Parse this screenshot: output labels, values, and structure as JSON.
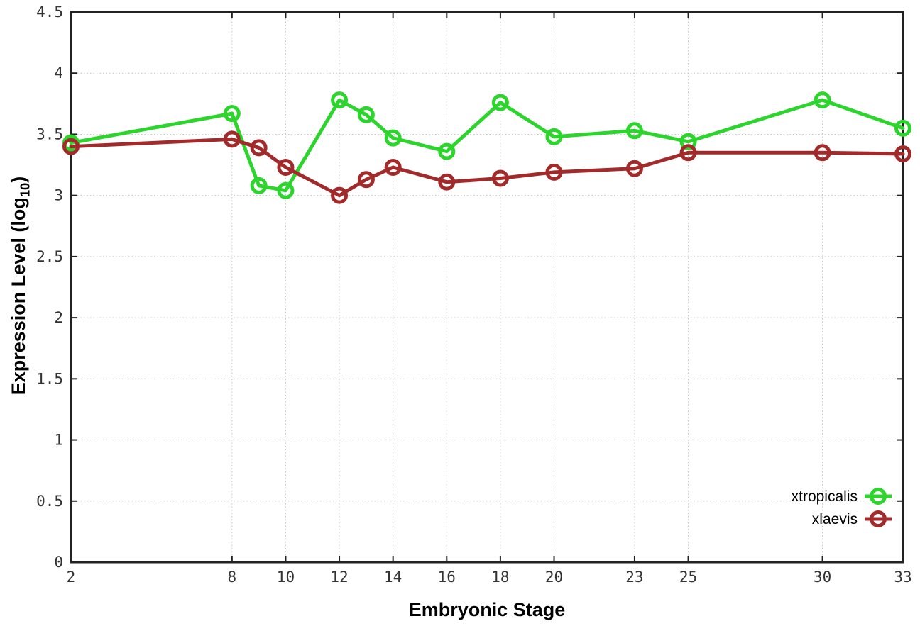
{
  "labels": {
    "xlabel": "Embryonic Stage",
    "ylabel_pre": "Expression Level (log",
    "ylabel_sub": "10",
    "ylabel_post": ")"
  },
  "chart_data": {
    "type": "line",
    "title": "",
    "xlabel": "Embryonic Stage",
    "ylabel": "Expression Level (log10)",
    "x": [
      2,
      8,
      9,
      10,
      12,
      13,
      14,
      16,
      18,
      20,
      23,
      25,
      30,
      33
    ],
    "series": [
      {
        "name": "xtropicalis",
        "color": "#2cd52c",
        "values": [
          3.43,
          3.67,
          3.08,
          3.04,
          3.78,
          3.66,
          3.47,
          3.36,
          3.76,
          3.48,
          3.53,
          3.44,
          3.78,
          3.55
        ]
      },
      {
        "name": "xlaevis",
        "color": "#a22a2a",
        "values": [
          3.4,
          3.46,
          3.39,
          3.23,
          3.0,
          3.13,
          3.23,
          3.11,
          3.14,
          3.19,
          3.22,
          3.35,
          3.35,
          3.34
        ]
      }
    ],
    "xticks": [
      2,
      8,
      10,
      12,
      14,
      16,
      18,
      20,
      23,
      25,
      30,
      33
    ],
    "yticks": [
      0,
      0.5,
      1,
      1.5,
      2,
      2.5,
      3,
      3.5,
      4,
      4.5
    ],
    "xlim": [
      2,
      33
    ],
    "ylim": [
      0,
      4.5
    ],
    "grid": true,
    "legend_position": "bottom-right",
    "marker": "open-circle",
    "style": {
      "grid_color": "#c4c4c4",
      "axis_color": "#222222",
      "tick_label_color": "#333333",
      "line_width": 5,
      "marker_radius": 9.5,
      "marker_stroke": 5
    }
  }
}
